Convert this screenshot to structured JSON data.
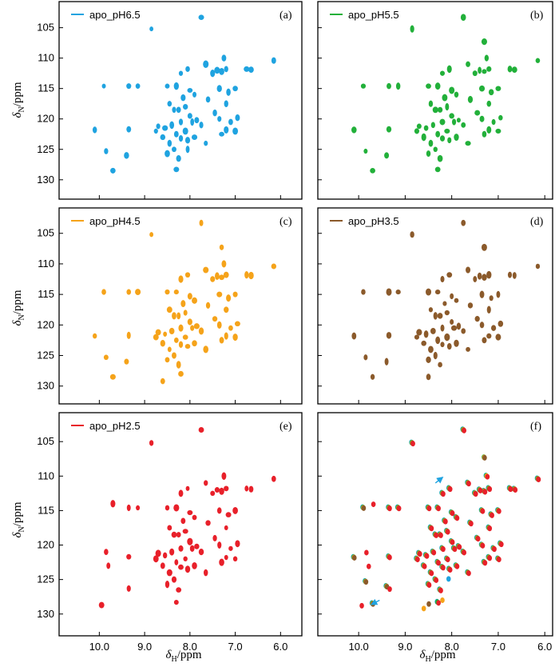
{
  "colors": {
    "apo_pH6.5": "#1fa3e0",
    "apo_pH5.5": "#22b03a",
    "apo_pH4.5": "#f5a31a",
    "apo_pH3.5": "#8b5a2b",
    "apo_pH2.5": "#e8202a",
    "arrow": "#1fa3e0"
  },
  "axes": {
    "x_unit": "δ_H/ppm",
    "y_unit": "δ_N/ppm",
    "xlim": [
      10.5,
      5.9
    ],
    "ylim": [
      101.5,
      132
    ],
    "xticks": [
      "10.0",
      "9.0",
      "8.0",
      "7.0",
      "6.0"
    ],
    "yticks": [
      "105",
      "110",
      "115",
      "120",
      "125",
      "130"
    ]
  },
  "chart_data": [
    {
      "type": "scatter",
      "panel": "(a)",
      "legend": "apo_pH6.5",
      "peaks": [
        [
          8.85,
          105.2
        ],
        [
          7.75,
          103.3
        ],
        [
          9.9,
          114.6
        ],
        [
          9.35,
          114.6
        ],
        [
          9.15,
          114.6
        ],
        [
          8.5,
          114.6
        ],
        [
          8.3,
          114.6
        ],
        [
          8.2,
          112.5
        ],
        [
          8.05,
          111.8
        ],
        [
          7.5,
          112.5
        ],
        [
          7.4,
          112.0
        ],
        [
          7.3,
          112.2
        ],
        [
          7.2,
          111.8
        ],
        [
          6.75,
          111.8
        ],
        [
          6.65,
          111.9
        ],
        [
          6.15,
          110.4
        ],
        [
          7.65,
          111.0
        ],
        [
          7.25,
          110.0
        ],
        [
          7.35,
          115.0
        ],
        [
          7.15,
          115.6
        ],
        [
          7.0,
          115.0
        ],
        [
          8.15,
          116.5
        ],
        [
          8.1,
          118.0
        ],
        [
          8.25,
          118.5
        ],
        [
          8.35,
          118.5
        ],
        [
          8.45,
          117.5
        ],
        [
          8.0,
          119.5
        ],
        [
          7.95,
          120.5
        ],
        [
          8.2,
          120.5
        ],
        [
          8.4,
          121.0
        ],
        [
          8.55,
          121.5
        ],
        [
          8.6,
          123.0
        ],
        [
          8.45,
          124.0
        ],
        [
          8.3,
          122.5
        ],
        [
          8.2,
          123.2
        ],
        [
          8.05,
          123.5
        ],
        [
          7.9,
          123.0
        ],
        [
          8.1,
          122.0
        ],
        [
          8.35,
          125.0
        ],
        [
          8.5,
          125.7
        ],
        [
          8.25,
          126.5
        ],
        [
          8.3,
          128.3
        ],
        [
          9.35,
          121.7
        ],
        [
          9.85,
          125.3
        ],
        [
          9.4,
          126.0
        ],
        [
          9.7,
          128.5
        ],
        [
          10.1,
          121.8
        ],
        [
          7.85,
          120.2
        ],
        [
          7.75,
          121.0
        ],
        [
          7.65,
          124.0
        ],
        [
          7.45,
          119.0
        ],
        [
          7.35,
          120.0
        ],
        [
          7.3,
          122.5
        ],
        [
          7.2,
          121.8
        ],
        [
          7.1,
          120.5
        ],
        [
          7.0,
          122.0
        ],
        [
          6.95,
          119.8
        ],
        [
          7.2,
          117.5
        ],
        [
          7.6,
          116.8
        ],
        [
          8.75,
          122.0
        ],
        [
          8.7,
          121.2
        ],
        [
          7.9,
          116.0
        ],
        [
          8.0,
          115.3
        ],
        [
          8.05,
          125.0
        ]
      ]
    },
    {
      "type": "scatter",
      "panel": "(b)",
      "legend": "apo_pH5.5",
      "peaks": [
        [
          8.85,
          105.2
        ],
        [
          7.75,
          103.3
        ],
        [
          9.9,
          114.6
        ],
        [
          9.35,
          114.6
        ],
        [
          9.15,
          114.6
        ],
        [
          8.5,
          114.6
        ],
        [
          8.3,
          114.6
        ],
        [
          8.2,
          112.5
        ],
        [
          8.05,
          111.8
        ],
        [
          7.5,
          112.5
        ],
        [
          7.4,
          112.0
        ],
        [
          7.3,
          112.2
        ],
        [
          7.2,
          111.8
        ],
        [
          6.75,
          111.8
        ],
        [
          6.65,
          111.9
        ],
        [
          6.15,
          110.4
        ],
        [
          7.65,
          111.0
        ],
        [
          7.25,
          110.0
        ],
        [
          7.35,
          115.0
        ],
        [
          7.15,
          115.6
        ],
        [
          7.0,
          115.0
        ],
        [
          8.15,
          116.5
        ],
        [
          8.1,
          118.0
        ],
        [
          8.25,
          118.5
        ],
        [
          8.35,
          118.5
        ],
        [
          8.45,
          117.5
        ],
        [
          8.0,
          119.5
        ],
        [
          7.95,
          120.5
        ],
        [
          8.2,
          120.5
        ],
        [
          8.4,
          121.0
        ],
        [
          8.55,
          121.5
        ],
        [
          8.6,
          123.0
        ],
        [
          8.45,
          124.0
        ],
        [
          8.3,
          122.5
        ],
        [
          8.2,
          123.2
        ],
        [
          8.05,
          123.5
        ],
        [
          7.9,
          123.0
        ],
        [
          8.1,
          122.0
        ],
        [
          8.35,
          125.0
        ],
        [
          8.5,
          125.7
        ],
        [
          8.25,
          126.5
        ],
        [
          8.3,
          128.3
        ],
        [
          9.35,
          121.7
        ],
        [
          9.85,
          125.3
        ],
        [
          9.4,
          126.0
        ],
        [
          9.7,
          128.5
        ],
        [
          10.1,
          121.8
        ],
        [
          7.85,
          120.2
        ],
        [
          7.75,
          121.0
        ],
        [
          7.65,
          124.0
        ],
        [
          7.45,
          119.0
        ],
        [
          7.35,
          120.0
        ],
        [
          7.3,
          122.5
        ],
        [
          7.2,
          121.8
        ],
        [
          7.1,
          120.5
        ],
        [
          7.0,
          122.0
        ],
        [
          6.95,
          119.8
        ],
        [
          7.2,
          117.5
        ],
        [
          7.6,
          116.8
        ],
        [
          8.75,
          122.0
        ],
        [
          8.7,
          121.2
        ],
        [
          7.9,
          116.0
        ],
        [
          8.0,
          115.3
        ],
        [
          7.3,
          107.3
        ]
      ]
    },
    {
      "type": "scatter",
      "panel": "(c)",
      "legend": "apo_pH4.5",
      "peaks": [
        [
          8.85,
          105.2
        ],
        [
          7.75,
          103.3
        ],
        [
          9.9,
          114.6
        ],
        [
          9.35,
          114.6
        ],
        [
          9.15,
          114.6
        ],
        [
          8.5,
          114.6
        ],
        [
          8.3,
          114.6
        ],
        [
          8.2,
          112.5
        ],
        [
          8.05,
          111.8
        ],
        [
          7.5,
          112.5
        ],
        [
          7.4,
          112.0
        ],
        [
          7.3,
          112.2
        ],
        [
          7.2,
          111.8
        ],
        [
          6.75,
          111.8
        ],
        [
          6.65,
          111.9
        ],
        [
          6.15,
          110.4
        ],
        [
          7.65,
          111.0
        ],
        [
          7.25,
          110.0
        ],
        [
          7.35,
          115.0
        ],
        [
          7.15,
          115.6
        ],
        [
          7.0,
          115.0
        ],
        [
          8.15,
          116.5
        ],
        [
          8.1,
          118.0
        ],
        [
          8.25,
          118.5
        ],
        [
          8.35,
          118.5
        ],
        [
          8.45,
          117.5
        ],
        [
          8.0,
          119.5
        ],
        [
          7.95,
          120.5
        ],
        [
          8.2,
          120.5
        ],
        [
          8.4,
          121.0
        ],
        [
          8.55,
          121.5
        ],
        [
          8.6,
          123.0
        ],
        [
          8.45,
          124.0
        ],
        [
          8.3,
          122.5
        ],
        [
          8.2,
          123.2
        ],
        [
          8.05,
          123.5
        ],
        [
          7.9,
          123.0
        ],
        [
          8.1,
          122.0
        ],
        [
          8.35,
          125.0
        ],
        [
          8.5,
          125.7
        ],
        [
          8.25,
          126.5
        ],
        [
          8.6,
          129.2
        ],
        [
          9.35,
          121.7
        ],
        [
          9.85,
          125.3
        ],
        [
          9.4,
          126.0
        ],
        [
          9.7,
          128.5
        ],
        [
          10.1,
          121.8
        ],
        [
          7.85,
          120.2
        ],
        [
          7.75,
          121.0
        ],
        [
          7.65,
          124.0
        ],
        [
          7.45,
          119.0
        ],
        [
          7.35,
          120.0
        ],
        [
          7.3,
          122.5
        ],
        [
          7.2,
          121.8
        ],
        [
          7.1,
          120.5
        ],
        [
          7.0,
          122.0
        ],
        [
          6.95,
          119.8
        ],
        [
          7.2,
          117.5
        ],
        [
          7.6,
          116.8
        ],
        [
          8.75,
          122.0
        ],
        [
          8.7,
          121.2
        ],
        [
          7.9,
          116.0
        ],
        [
          8.0,
          115.3
        ],
        [
          7.3,
          107.3
        ],
        [
          8.2,
          128.0
        ]
      ]
    },
    {
      "type": "scatter",
      "panel": "(d)",
      "legend": "apo_pH3.5",
      "peaks": [
        [
          8.85,
          105.2
        ],
        [
          7.75,
          103.3
        ],
        [
          9.9,
          114.6
        ],
        [
          9.35,
          114.6
        ],
        [
          9.15,
          114.6
        ],
        [
          8.5,
          114.6
        ],
        [
          8.3,
          114.6
        ],
        [
          8.2,
          112.5
        ],
        [
          8.05,
          111.8
        ],
        [
          7.5,
          112.5
        ],
        [
          7.4,
          112.0
        ],
        [
          7.3,
          112.2
        ],
        [
          7.2,
          111.8
        ],
        [
          6.75,
          111.8
        ],
        [
          6.65,
          111.9
        ],
        [
          6.15,
          110.4
        ],
        [
          7.65,
          111.0
        ],
        [
          7.35,
          115.0
        ],
        [
          7.15,
          115.6
        ],
        [
          7.0,
          115.0
        ],
        [
          8.15,
          116.5
        ],
        [
          8.1,
          118.0
        ],
        [
          8.25,
          118.5
        ],
        [
          8.35,
          118.5
        ],
        [
          8.45,
          117.5
        ],
        [
          8.0,
          119.5
        ],
        [
          7.95,
          120.5
        ],
        [
          8.2,
          120.5
        ],
        [
          8.4,
          121.0
        ],
        [
          8.55,
          121.5
        ],
        [
          8.6,
          123.0
        ],
        [
          8.45,
          124.0
        ],
        [
          8.3,
          122.5
        ],
        [
          8.2,
          123.2
        ],
        [
          8.05,
          123.5
        ],
        [
          7.9,
          123.0
        ],
        [
          8.1,
          122.0
        ],
        [
          8.35,
          125.0
        ],
        [
          8.5,
          125.7
        ],
        [
          8.25,
          126.5
        ],
        [
          8.5,
          128.5
        ],
        [
          9.35,
          121.7
        ],
        [
          9.85,
          125.3
        ],
        [
          9.4,
          126.0
        ],
        [
          9.7,
          128.5
        ],
        [
          10.1,
          121.8
        ],
        [
          7.85,
          120.2
        ],
        [
          7.75,
          121.0
        ],
        [
          7.65,
          124.0
        ],
        [
          7.45,
          119.0
        ],
        [
          7.35,
          120.0
        ],
        [
          7.3,
          122.5
        ],
        [
          7.2,
          121.8
        ],
        [
          7.1,
          120.5
        ],
        [
          7.0,
          122.0
        ],
        [
          6.95,
          119.8
        ],
        [
          7.2,
          117.5
        ],
        [
          7.6,
          116.8
        ],
        [
          8.75,
          122.0
        ],
        [
          8.7,
          121.2
        ],
        [
          7.9,
          116.0
        ],
        [
          8.0,
          115.3
        ],
        [
          7.3,
          107.3
        ]
      ]
    },
    {
      "type": "scatter",
      "panel": "(e)",
      "legend": "apo_pH2.5",
      "peaks": [
        [
          8.85,
          105.2
        ],
        [
          7.75,
          103.3
        ],
        [
          9.7,
          114.0
        ],
        [
          9.35,
          114.6
        ],
        [
          9.15,
          114.6
        ],
        [
          8.5,
          114.6
        ],
        [
          8.3,
          114.6
        ],
        [
          8.2,
          112.5
        ],
        [
          8.05,
          111.8
        ],
        [
          7.5,
          112.5
        ],
        [
          7.4,
          112.0
        ],
        [
          7.3,
          112.2
        ],
        [
          7.2,
          111.8
        ],
        [
          6.75,
          111.8
        ],
        [
          6.65,
          111.9
        ],
        [
          6.15,
          110.4
        ],
        [
          7.65,
          111.0
        ],
        [
          7.25,
          110.0
        ],
        [
          7.35,
          115.0
        ],
        [
          7.15,
          115.6
        ],
        [
          7.0,
          115.0
        ],
        [
          8.15,
          116.5
        ],
        [
          8.1,
          118.0
        ],
        [
          8.25,
          118.5
        ],
        [
          8.35,
          118.5
        ],
        [
          8.45,
          117.5
        ],
        [
          8.0,
          119.5
        ],
        [
          7.95,
          120.5
        ],
        [
          8.2,
          120.5
        ],
        [
          8.4,
          121.0
        ],
        [
          8.55,
          121.5
        ],
        [
          8.6,
          123.0
        ],
        [
          8.45,
          124.0
        ],
        [
          8.3,
          122.5
        ],
        [
          8.2,
          123.2
        ],
        [
          8.05,
          123.5
        ],
        [
          7.9,
          123.0
        ],
        [
          8.1,
          122.0
        ],
        [
          8.35,
          125.0
        ],
        [
          8.5,
          125.7
        ],
        [
          8.25,
          126.5
        ],
        [
          8.3,
          128.3
        ],
        [
          9.35,
          121.7
        ],
        [
          9.85,
          121.0
        ],
        [
          9.35,
          126.3
        ],
        [
          9.95,
          128.7
        ],
        [
          7.85,
          120.2
        ],
        [
          7.75,
          121.0
        ],
        [
          7.65,
          124.0
        ],
        [
          7.45,
          119.0
        ],
        [
          7.35,
          120.0
        ],
        [
          7.3,
          122.5
        ],
        [
          7.2,
          121.8
        ],
        [
          7.1,
          120.5
        ],
        [
          7.0,
          122.0
        ],
        [
          6.95,
          119.8
        ],
        [
          7.2,
          117.5
        ],
        [
          7.6,
          116.8
        ],
        [
          8.75,
          122.0
        ],
        [
          8.7,
          121.2
        ],
        [
          7.9,
          116.0
        ],
        [
          8.0,
          115.3
        ],
        [
          9.8,
          123.0
        ]
      ]
    }
  ],
  "overlay_panel": {
    "label": "(f)",
    "series_order": [
      "apo_pH6.5",
      "apo_pH5.5",
      "apo_pH4.5",
      "apo_pH3.5",
      "apo_pH2.5"
    ],
    "arrows": [
      [
        8.35,
        111.0,
        8.2,
        110.2
      ],
      [
        9.55,
        128.0,
        9.72,
        128.6
      ]
    ]
  },
  "panel_labels": [
    "(a)",
    "(b)",
    "(c)",
    "(d)",
    "(e)",
    "(f)"
  ]
}
